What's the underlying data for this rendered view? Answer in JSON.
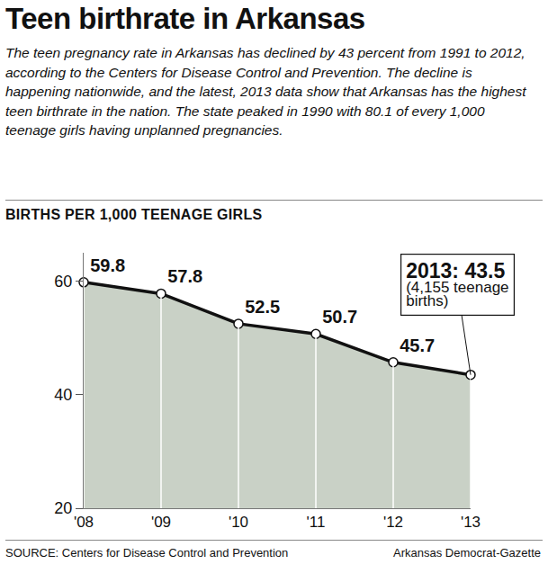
{
  "chart_data": {
    "type": "area",
    "title": "Teen birthrate in Arkansas",
    "subtitle": "The teen pregnancy rate in Arkansas has declined by 43 percent from 1991 to 2012, according to the Centers for Disease Control and Prevention. The decline is happening nationwide, and the latest, 2013 data show that Arkansas has the highest teen birthrate in the nation. The state peaked in 1990 with 80.1 of every 1,000 teenage girls having unplanned pregnancies.",
    "ylabel": "BIRTHS PER 1,000 TEENAGE GIRLS",
    "categories": [
      "'08",
      "'09",
      "'10",
      "'11",
      "'12",
      "'13"
    ],
    "values": [
      59.8,
      57.8,
      52.5,
      50.7,
      45.7,
      43.5
    ],
    "value_labels": [
      "59.8",
      "57.8",
      "52.5",
      "50.7",
      "45.7",
      null
    ],
    "data_labels": true,
    "color": "#c9d1c6",
    "ylim": [
      20,
      65
    ],
    "yticks": [
      20,
      40,
      60
    ],
    "grid": true,
    "marker": "circle",
    "annotations": [
      {
        "category": "'13",
        "y": 43.5,
        "lines": [
          "2013: 43.5",
          "(4,155 teenage",
          "births)"
        ]
      }
    ],
    "source": "SOURCE: Centers for Disease Control and Prevention",
    "credit": "Arkansas Democrat-Gazette"
  }
}
